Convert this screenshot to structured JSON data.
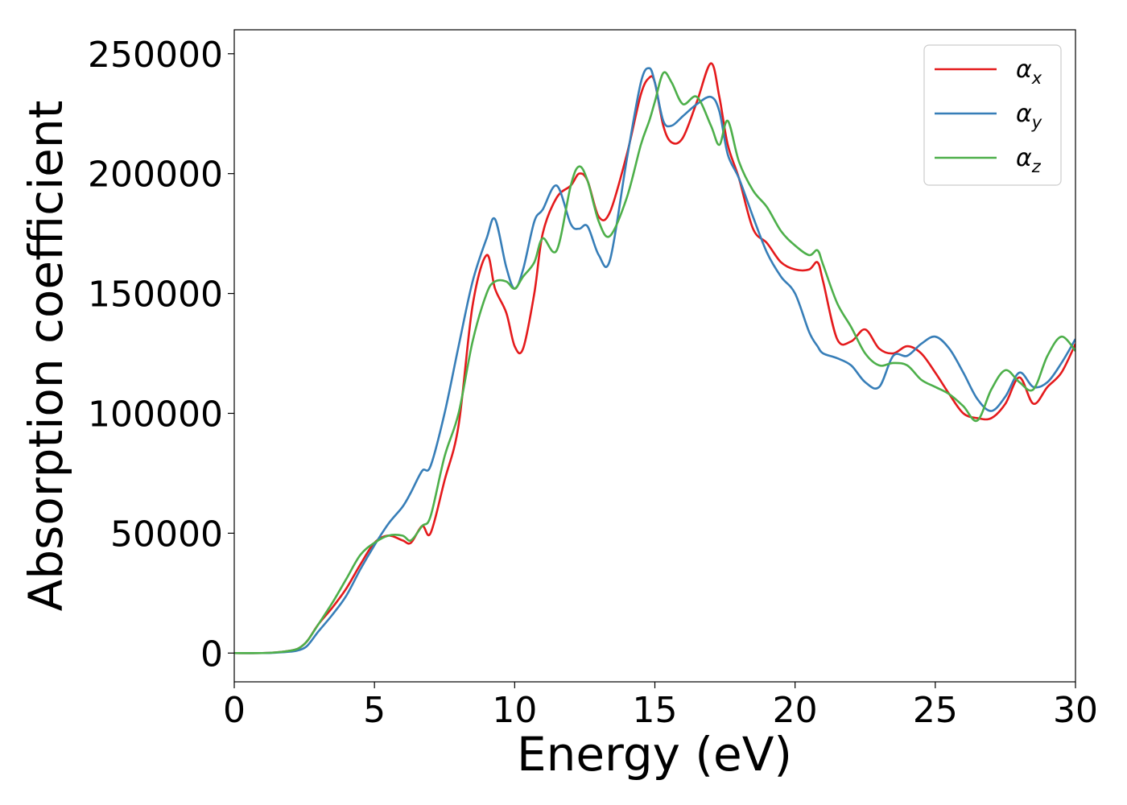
{
  "chart_data": {
    "type": "line",
    "xlabel": "Energy (eV)",
    "ylabel": "Absorption coefficient",
    "xlim": [
      0,
      30
    ],
    "ylim": [
      -12000,
      260000
    ],
    "x_ticks": [
      0,
      5,
      10,
      15,
      20,
      25,
      30
    ],
    "y_ticks": [
      0,
      50000,
      100000,
      150000,
      200000,
      250000
    ],
    "grid": false,
    "legend_position": "top-right",
    "series": [
      {
        "name": "α_x",
        "legend_main": "α",
        "legend_sub": "x",
        "color": "#e41a1c",
        "x": [
          0,
          1,
          1.5,
          2,
          2.3,
          2.6,
          3,
          3.5,
          4,
          4.5,
          5,
          5.5,
          6,
          6.3,
          6.7,
          7,
          7.5,
          8,
          8.5,
          9,
          9.3,
          9.7,
          10,
          10.3,
          10.7,
          11,
          11.5,
          12,
          12.3,
          12.6,
          13,
          13.4,
          14,
          14.5,
          14.8,
          15,
          15.3,
          15.6,
          16,
          16.5,
          17,
          17.3,
          17.6,
          18,
          18.5,
          19,
          19.5,
          20,
          20.5,
          20.8,
          21,
          21.5,
          22,
          22.5,
          23,
          23.5,
          24,
          24.5,
          25,
          25.5,
          26,
          26.5,
          27,
          27.5,
          28,
          28.5,
          29,
          29.5,
          30
        ],
        "y": [
          0,
          0,
          300,
          1000,
          2000,
          5000,
          12000,
          19000,
          27000,
          37000,
          46000,
          49000,
          47000,
          46000,
          53000,
          50000,
          72000,
          95000,
          145000,
          166000,
          152000,
          142000,
          128000,
          127000,
          150000,
          175000,
          190000,
          195000,
          200000,
          197000,
          182000,
          184000,
          208000,
          233000,
          240000,
          238000,
          220000,
          213000,
          215000,
          230000,
          246000,
          232000,
          212000,
          198000,
          177000,
          171000,
          163000,
          160000,
          160000,
          163000,
          155000,
          131000,
          130000,
          135000,
          127000,
          125000,
          128000,
          125000,
          117000,
          108000,
          100000,
          98000,
          98000,
          104000,
          115000,
          104000,
          111000,
          117000,
          129000
        ]
      },
      {
        "name": "α_y",
        "legend_main": "α",
        "legend_sub": "y",
        "color": "#377eb8",
        "x": [
          0,
          1,
          1.5,
          2,
          2.3,
          2.6,
          3,
          3.5,
          4,
          4.5,
          5,
          5.5,
          6,
          6.3,
          6.7,
          7,
          7.5,
          8,
          8.5,
          9,
          9.3,
          9.7,
          10,
          10.3,
          10.7,
          11,
          11.5,
          12,
          12.3,
          12.6,
          13,
          13.4,
          14,
          14.5,
          14.8,
          15,
          15.3,
          15.6,
          16,
          16.5,
          17,
          17.3,
          17.6,
          18,
          18.5,
          19,
          19.5,
          20,
          20.5,
          20.8,
          21,
          21.5,
          22,
          22.5,
          23,
          23.5,
          24,
          24.5,
          25,
          25.5,
          26,
          26.5,
          27,
          27.5,
          28,
          28.5,
          29,
          29.5,
          30
        ],
        "y": [
          0,
          0,
          200,
          600,
          1200,
          3000,
          9000,
          16000,
          24000,
          35000,
          45000,
          54000,
          61000,
          67000,
          76000,
          78000,
          100000,
          128000,
          155000,
          173000,
          181000,
          161000,
          152000,
          160000,
          180000,
          185000,
          195000,
          179000,
          177000,
          178000,
          166000,
          164000,
          206000,
          238000,
          244000,
          238000,
          222000,
          220000,
          224000,
          229000,
          232000,
          226000,
          208000,
          198000,
          182000,
          167000,
          157000,
          150000,
          134000,
          128000,
          125000,
          123000,
          120000,
          113000,
          111000,
          124000,
          124000,
          129000,
          132000,
          127000,
          117000,
          106000,
          101000,
          107000,
          117000,
          111000,
          113000,
          121000,
          131000
        ]
      },
      {
        "name": "α_z",
        "legend_main": "α",
        "legend_sub": "z",
        "color": "#4daf4a",
        "x": [
          0,
          1,
          1.5,
          2,
          2.3,
          2.6,
          3,
          3.5,
          4,
          4.5,
          5,
          5.5,
          6,
          6.3,
          6.7,
          7,
          7.5,
          8,
          8.5,
          9,
          9.3,
          9.7,
          10,
          10.3,
          10.7,
          11,
          11.5,
          12,
          12.3,
          12.6,
          13,
          13.4,
          14,
          14.5,
          14.8,
          15,
          15.3,
          15.6,
          16,
          16.5,
          17,
          17.3,
          17.6,
          18,
          18.5,
          19,
          19.5,
          20,
          20.5,
          20.8,
          21,
          21.5,
          22,
          22.5,
          23,
          23.5,
          24,
          24.5,
          25,
          25.5,
          26,
          26.5,
          27,
          27.5,
          28,
          28.5,
          29,
          29.5,
          30
        ],
        "y": [
          0,
          0,
          300,
          1000,
          2000,
          5000,
          12000,
          21000,
          31000,
          41000,
          46000,
          49000,
          49000,
          47000,
          53000,
          57000,
          82000,
          100000,
          130000,
          150000,
          155000,
          155000,
          152000,
          157000,
          163000,
          173000,
          168000,
          195000,
          203000,
          197000,
          180000,
          174000,
          190000,
          212000,
          222000,
          230000,
          242000,
          238000,
          229000,
          232000,
          220000,
          212000,
          222000,
          205000,
          193000,
          186000,
          176000,
          170000,
          166000,
          168000,
          162000,
          146000,
          136000,
          125000,
          120000,
          121000,
          120000,
          114000,
          111000,
          108000,
          103000,
          97000,
          110000,
          118000,
          113000,
          110000,
          124000,
          132000,
          126000
        ]
      }
    ]
  }
}
